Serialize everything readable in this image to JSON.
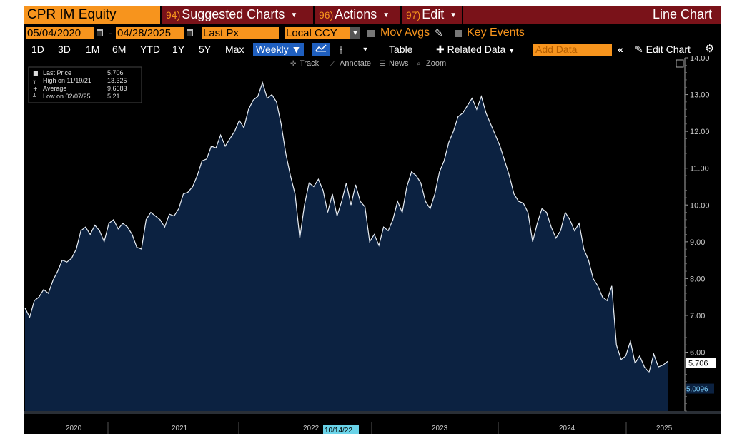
{
  "header": {
    "security": "CPR IM Equity",
    "menus": [
      {
        "num": "94)",
        "label": "Suggested Charts"
      },
      {
        "num": "96)",
        "label": "Actions"
      },
      {
        "num": "97)",
        "label": "Edit"
      }
    ],
    "title": "Line Chart"
  },
  "controls": {
    "start_date": "05/04/2020",
    "date_sep": "-",
    "end_date": "04/28/2025",
    "field": "Last Px",
    "currency": "Local CCY",
    "mov_avgs": "Mov Avgs",
    "key_events": "Key Events"
  },
  "toolbar": {
    "periods": [
      "1D",
      "3D",
      "1M",
      "6M",
      "YTD",
      "1Y",
      "5Y",
      "Max"
    ],
    "frequency": "Weekly",
    "table": "Table",
    "related": "Related Data",
    "add_data_placeholder": "Add Data",
    "edit_chart": "Edit Chart",
    "chart_tools": [
      "Track",
      "Annotate",
      "News",
      "Zoom"
    ]
  },
  "legend": {
    "rows": [
      {
        "label": "Last Price",
        "value": "5.706"
      },
      {
        "label": "High on 11/19/21",
        "value": "13.325"
      },
      {
        "label": "Average",
        "value": "9.6683"
      },
      {
        "label": "Low on 02/07/25",
        "value": "5.21"
      }
    ]
  },
  "chart_data": {
    "type": "area",
    "x_axis_labels": [
      "2020",
      "2021",
      "2022",
      "2023",
      "2024",
      "2025"
    ],
    "x_cursor_label": "10/14/22",
    "y_ticks": [
      "5.00",
      "6.00",
      "7.00",
      "8.00",
      "9.00",
      "10.00",
      "11.00",
      "12.00",
      "13.00",
      "14.00"
    ],
    "ylim": [
      4.4,
      14.0
    ],
    "last_label": "5.706",
    "secondary_label": "5.0096",
    "series": [
      {
        "values": [
          7.2,
          6.95,
          7.4,
          7.5,
          7.7,
          7.6,
          7.95,
          8.2,
          8.5,
          8.45,
          8.55,
          8.8,
          9.3,
          9.4,
          9.2,
          9.45,
          9.3,
          9.0,
          9.5,
          9.6,
          9.35,
          9.5,
          9.4,
          9.2,
          8.85,
          8.8,
          9.6,
          9.8,
          9.7,
          9.6,
          9.4,
          9.75,
          9.7,
          9.9,
          10.3,
          10.35,
          10.5,
          10.8,
          11.2,
          11.25,
          11.6,
          11.55,
          11.9,
          11.6,
          11.8,
          12.0,
          12.3,
          12.1,
          12.6,
          12.85,
          12.95,
          13.325,
          12.9,
          13.0,
          12.8,
          12.2,
          11.4,
          10.8,
          10.3,
          9.1,
          10.0,
          10.6,
          10.5,
          10.7,
          10.4,
          9.8,
          10.3,
          9.7,
          10.1,
          10.6,
          10.0,
          10.55,
          10.1,
          9.95,
          9.0,
          9.2,
          8.9,
          9.4,
          9.3,
          9.6,
          10.1,
          9.8,
          10.5,
          10.9,
          10.8,
          10.6,
          10.1,
          9.9,
          10.3,
          10.9,
          11.2,
          11.7,
          12.0,
          12.4,
          12.5,
          12.7,
          12.9,
          12.6,
          12.95,
          12.5,
          12.2,
          11.9,
          11.6,
          11.2,
          10.8,
          10.3,
          10.1,
          10.05,
          9.8,
          9.0,
          9.5,
          9.9,
          9.8,
          9.4,
          9.1,
          9.3,
          9.8,
          9.6,
          9.3,
          9.5,
          8.8,
          8.5,
          8.0,
          7.8,
          7.5,
          7.4,
          7.8,
          6.2,
          5.8,
          5.9,
          6.3,
          5.7,
          5.9,
          5.6,
          5.45,
          5.95,
          5.6,
          5.65,
          5.75
        ]
      }
    ]
  }
}
